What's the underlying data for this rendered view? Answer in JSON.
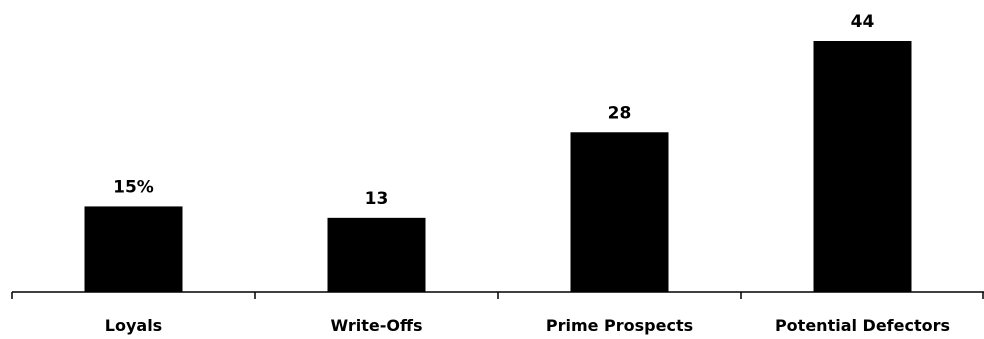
{
  "chart_data": {
    "type": "bar",
    "categories": [
      "Loyals",
      "Write-Offs",
      "Prime Prospects",
      "Potential Defectors"
    ],
    "values": [
      15,
      13,
      28,
      44
    ],
    "data_labels": [
      "15%",
      "13",
      "28",
      "44"
    ],
    "ylim": [
      0,
      44
    ],
    "grid": false,
    "legend": "none",
    "bar_color": "#000000",
    "axis_color": "#000000"
  }
}
